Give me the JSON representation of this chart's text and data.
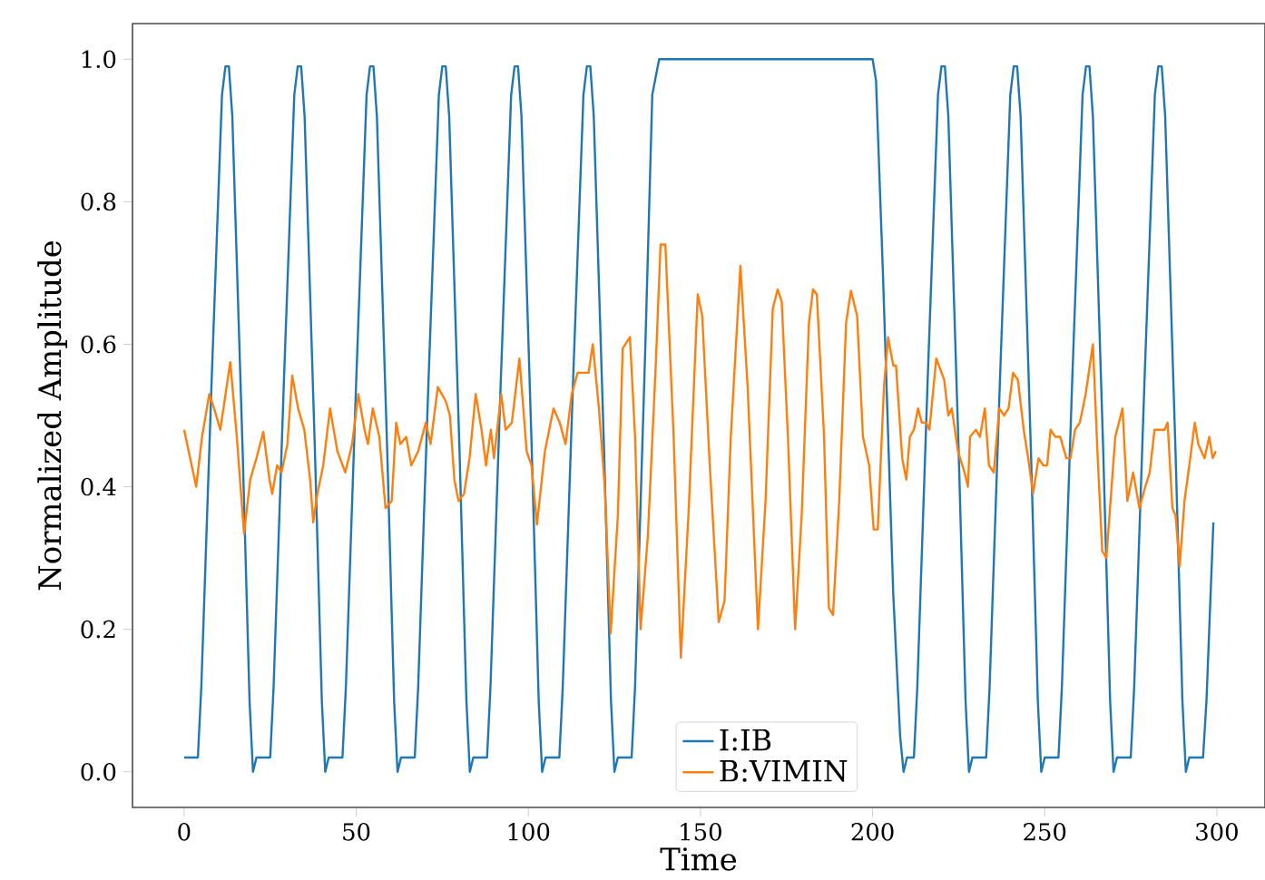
{
  "chart_data": {
    "type": "line",
    "xlabel": "Time",
    "ylabel": "Normalized Amplitude",
    "xlim": [
      -15,
      314
    ],
    "ylim": [
      -0.05,
      1.05
    ],
    "xticks": [
      0,
      50,
      100,
      150,
      200,
      250,
      300
    ],
    "yticks": [
      {
        "value": 0,
        "label": "0.0"
      },
      {
        "value": 0.2,
        "label": "0.2"
      },
      {
        "value": 0.4,
        "label": "0.4"
      },
      {
        "value": 0.6,
        "label": "0.6"
      },
      {
        "value": 0.8,
        "label": "0.8"
      },
      {
        "value": 1.0,
        "label": "1.0"
      }
    ],
    "grid": false,
    "legend": "bottom",
    "marker": "none",
    "line_style": "solid",
    "series": [
      {
        "name": "I:IB",
        "color": "#1f77b4",
        "x": [
          0,
          4,
          5,
          8,
          11,
          12,
          13,
          14,
          17,
          19,
          20,
          21,
          25,
          26,
          29,
          32,
          33,
          34,
          35,
          38,
          40,
          41,
          42,
          46,
          47,
          50,
          53,
          54,
          55,
          56,
          59,
          61,
          62,
          63,
          67,
          68,
          71,
          74,
          75,
          76,
          77,
          80,
          82,
          83,
          84,
          88,
          89,
          92,
          95,
          96,
          97,
          98,
          101,
          103,
          104,
          105,
          109,
          110,
          113,
          116,
          117,
          118,
          119,
          122,
          124,
          125,
          126,
          130,
          131,
          134,
          136,
          138,
          200,
          201,
          203,
          206,
          208,
          209,
          210,
          212,
          213,
          216,
          219,
          220,
          221,
          222,
          225,
          227,
          228,
          229,
          233,
          234,
          237,
          240,
          241,
          242,
          243,
          246,
          248,
          249,
          250,
          254,
          255,
          258,
          261,
          262,
          263,
          264,
          267,
          269,
          270,
          271,
          275,
          276,
          279,
          282,
          283,
          284,
          285,
          288,
          290,
          291,
          292,
          296,
          297,
          299
        ],
        "values": [
          0.02,
          0.02,
          0.12,
          0.55,
          0.95,
          0.99,
          0.99,
          0.92,
          0.45,
          0.1,
          0.0,
          0.02,
          0.02,
          0.12,
          0.55,
          0.95,
          0.99,
          0.99,
          0.92,
          0.45,
          0.1,
          0.0,
          0.02,
          0.02,
          0.12,
          0.55,
          0.95,
          0.99,
          0.99,
          0.92,
          0.45,
          0.1,
          0.0,
          0.02,
          0.02,
          0.12,
          0.55,
          0.95,
          0.99,
          0.99,
          0.92,
          0.45,
          0.1,
          0.0,
          0.02,
          0.02,
          0.12,
          0.55,
          0.95,
          0.99,
          0.99,
          0.92,
          0.45,
          0.1,
          0.0,
          0.02,
          0.02,
          0.12,
          0.55,
          0.95,
          0.99,
          0.99,
          0.92,
          0.45,
          0.1,
          0.0,
          0.02,
          0.02,
          0.12,
          0.6,
          0.95,
          1.0,
          1.0,
          0.97,
          0.7,
          0.25,
          0.05,
          0.0,
          0.02,
          0.02,
          0.12,
          0.55,
          0.95,
          0.99,
          0.99,
          0.92,
          0.45,
          0.1,
          0.0,
          0.02,
          0.02,
          0.12,
          0.55,
          0.95,
          0.99,
          0.99,
          0.92,
          0.45,
          0.1,
          0.0,
          0.02,
          0.02,
          0.12,
          0.55,
          0.95,
          0.99,
          0.99,
          0.92,
          0.45,
          0.1,
          0.0,
          0.02,
          0.02,
          0.12,
          0.55,
          0.95,
          0.99,
          0.99,
          0.92,
          0.45,
          0.1,
          0.0,
          0.02,
          0.02,
          0.1,
          0.35
        ]
      },
      {
        "name": "B:VIMIN",
        "color": "#ff7f0e",
        "x": [
          0,
          3.5,
          5.2,
          7.3,
          8.7,
          10.5,
          13.4,
          15.3,
          17.4,
          19.2,
          21,
          23,
          24.8,
          25.6,
          27,
          28.3,
          30,
          31.4,
          33.1,
          34.9,
          36.6,
          37.5,
          38.7,
          40.4,
          42.4,
          44.5,
          46.8,
          48.8,
          50.6,
          52.4,
          53.4,
          54.8,
          56.7,
          58.5,
          60.3,
          61.6,
          62.8,
          64.5,
          66,
          68,
          70.2,
          71.6,
          73.7,
          76,
          77.2,
          78.5,
          79.7,
          81.3,
          82.9,
          84.7,
          86.4,
          87.7,
          89.1,
          90,
          92.1,
          93.4,
          95.2,
          97.4,
          99.5,
          100.9,
          102.5,
          104.8,
          107.3,
          109.1,
          110.8,
          112.6,
          114.3,
          116,
          117.5,
          118.7,
          120.5,
          122.2,
          123.9,
          126,
          127.4,
          129.5,
          131,
          132.6,
          134.7,
          137,
          138.4,
          139.8,
          142.2,
          144.3,
          146.6,
          149.2,
          150.5,
          152.7,
          155.3,
          157,
          158.8,
          160.2,
          161.6,
          163.7,
          166.7,
          168.9,
          171,
          172.4,
          173.6,
          175.4,
          177.5,
          179.4,
          181.5,
          182.7,
          183.8,
          185.9,
          187.3,
          188.5,
          190.3,
          192.3,
          193.7,
          195.5,
          197.2,
          199,
          200.3,
          201.5,
          203.3,
          204.5,
          206,
          206.8,
          208.6,
          209.8,
          210.8,
          212,
          213.2,
          214.3,
          215.6,
          216.5,
          218.5,
          220.8,
          222,
          223,
          224.8,
          226.7,
          227.7,
          228.3,
          230,
          231.2,
          232.6,
          233.8,
          235.2,
          236.8,
          238.2,
          239.5,
          240.8,
          242.2,
          243.9,
          245.2,
          246.6,
          248.2,
          249.6,
          250.7,
          251.7,
          253.1,
          254.5,
          256.3,
          257.5,
          258.8,
          260.2,
          261.9,
          264,
          265.4,
          266.7,
          267.9,
          270.5,
          272.6,
          274,
          275.7,
          277.5,
          279.2,
          280.5,
          281.9,
          283.1,
          284.8,
          285.7,
          287.1,
          288,
          289.2,
          290.6,
          292,
          293.6,
          294.6,
          296.4,
          297.8,
          298.8,
          299.7
        ],
        "values": [
          0.48,
          0.4,
          0.47,
          0.53,
          0.51,
          0.48,
          0.575,
          0.47,
          0.334,
          0.41,
          0.44,
          0.477,
          0.41,
          0.39,
          0.43,
          0.42,
          0.46,
          0.556,
          0.51,
          0.48,
          0.41,
          0.35,
          0.39,
          0.43,
          0.51,
          0.45,
          0.42,
          0.46,
          0.53,
          0.48,
          0.46,
          0.51,
          0.47,
          0.37,
          0.38,
          0.49,
          0.46,
          0.47,
          0.43,
          0.45,
          0.49,
          0.46,
          0.54,
          0.52,
          0.5,
          0.41,
          0.38,
          0.39,
          0.44,
          0.53,
          0.48,
          0.43,
          0.48,
          0.44,
          0.53,
          0.48,
          0.49,
          0.58,
          0.45,
          0.43,
          0.347,
          0.45,
          0.51,
          0.49,
          0.46,
          0.53,
          0.56,
          0.56,
          0.56,
          0.6,
          0.51,
          0.4,
          0.194,
          0.36,
          0.594,
          0.61,
          0.47,
          0.2,
          0.33,
          0.57,
          0.74,
          0.74,
          0.47,
          0.16,
          0.37,
          0.67,
          0.64,
          0.43,
          0.21,
          0.24,
          0.47,
          0.59,
          0.71,
          0.54,
          0.2,
          0.38,
          0.65,
          0.677,
          0.66,
          0.47,
          0.2,
          0.36,
          0.63,
          0.677,
          0.67,
          0.47,
          0.23,
          0.22,
          0.38,
          0.63,
          0.675,
          0.64,
          0.47,
          0.43,
          0.34,
          0.34,
          0.54,
          0.61,
          0.57,
          0.57,
          0.44,
          0.41,
          0.47,
          0.48,
          0.51,
          0.49,
          0.49,
          0.48,
          0.58,
          0.55,
          0.5,
          0.51,
          0.45,
          0.42,
          0.4,
          0.47,
          0.48,
          0.47,
          0.51,
          0.43,
          0.42,
          0.51,
          0.5,
          0.51,
          0.56,
          0.55,
          0.48,
          0.44,
          0.39,
          0.44,
          0.43,
          0.43,
          0.48,
          0.47,
          0.47,
          0.44,
          0.44,
          0.48,
          0.49,
          0.53,
          0.6,
          0.44,
          0.31,
          0.3,
          0.47,
          0.51,
          0.38,
          0.42,
          0.37,
          0.4,
          0.42,
          0.48,
          0.48,
          0.48,
          0.49,
          0.37,
          0.36,
          0.288,
          0.38,
          0.43,
          0.49,
          0.46,
          0.44,
          0.47,
          0.44,
          0.45
        ]
      }
    ]
  }
}
